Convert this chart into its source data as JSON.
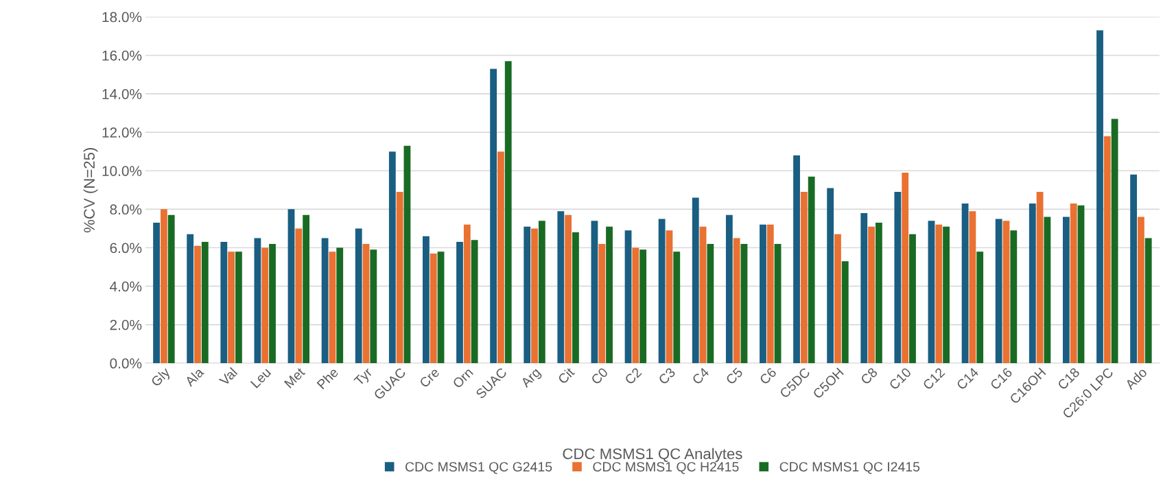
{
  "chart_data": {
    "type": "bar",
    "xlabel": "CDC MSMS1 QC Analytes",
    "ylabel": "%CV (N=25)",
    "categories": [
      "Gly",
      "Ala",
      "Val",
      "Leu",
      "Met",
      "Phe",
      "Tyr",
      "GUAC",
      "Cre",
      "Orn",
      "SUAC",
      "Arg",
      "Cit",
      "C0",
      "C2",
      "C3",
      "C4",
      "C5",
      "C6",
      "C5DC",
      "C5OH",
      "C8",
      "C10",
      "C12",
      "C14",
      "C16",
      "C16OH",
      "C18",
      "C26:0 LPC",
      "Ado"
    ],
    "series": [
      {
        "name": "CDC MSMS1 QC G2415",
        "color": "#1a5e82",
        "values": [
          7.3,
          6.7,
          6.3,
          6.5,
          8.0,
          6.5,
          7.0,
          11.0,
          6.6,
          6.3,
          15.3,
          7.1,
          7.9,
          7.4,
          6.9,
          7.5,
          8.6,
          7.7,
          7.2,
          10.8,
          9.1,
          7.8,
          8.9,
          7.4,
          8.3,
          7.5,
          8.3,
          7.6,
          17.3,
          9.8
        ]
      },
      {
        "name": "CDC MSMS1 QC H2415",
        "color": "#e97132",
        "values": [
          8.0,
          6.1,
          5.8,
          6.0,
          7.0,
          5.8,
          6.2,
          8.9,
          5.7,
          7.2,
          11.0,
          7.0,
          7.7,
          6.2,
          6.0,
          6.9,
          7.1,
          6.5,
          7.2,
          8.9,
          6.7,
          7.1,
          9.9,
          7.2,
          7.9,
          7.4,
          8.9,
          8.3,
          11.8,
          7.6
        ]
      },
      {
        "name": "CDC MSMS1 QC I2415",
        "color": "#196b24",
        "values": [
          7.7,
          6.3,
          5.8,
          6.2,
          7.7,
          6.0,
          5.9,
          11.3,
          5.8,
          6.4,
          15.7,
          7.4,
          6.8,
          7.1,
          5.9,
          5.8,
          6.2,
          6.2,
          6.2,
          9.7,
          5.3,
          7.3,
          6.7,
          7.1,
          5.8,
          6.9,
          7.6,
          8.2,
          12.7,
          6.5
        ]
      }
    ],
    "ylim": [
      0,
      18
    ],
    "yticks": [
      {
        "value": 0,
        "label": "0.0%"
      },
      {
        "value": 2,
        "label": "2.0%"
      },
      {
        "value": 4,
        "label": "4.0%"
      },
      {
        "value": 6,
        "label": "6.0%"
      },
      {
        "value": 8,
        "label": "8.0%"
      },
      {
        "value": 10,
        "label": "10.0%"
      },
      {
        "value": 12,
        "label": "12.0%"
      },
      {
        "value": 14,
        "label": "14.0%"
      },
      {
        "value": 16,
        "label": "16.0%"
      },
      {
        "value": 18,
        "label": "18.0%"
      }
    ],
    "grid": "y",
    "legend": "bottom"
  }
}
